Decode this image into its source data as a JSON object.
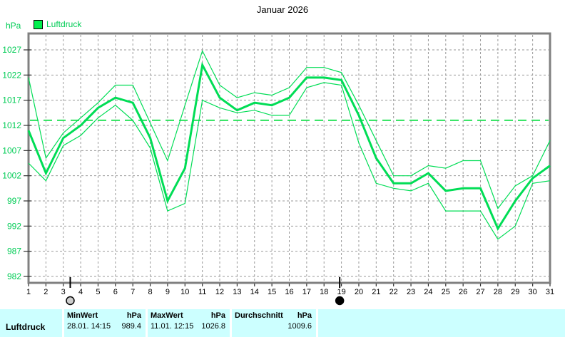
{
  "chart": {
    "title": "Januar 2026",
    "y_unit_label": "hPa",
    "legend_label": "Luftdruck"
  },
  "colors": {
    "series_green": "#00dd55",
    "reference_green": "#2ce35c",
    "green_text": "#00cc55",
    "grid_gray": "#9a9a9a",
    "border_gray": "#808080",
    "tick_dark": "#303030",
    "table_bg": "#ccffff",
    "full_moon_fill": "#cdcdcd",
    "new_moon_fill": "#000000"
  },
  "chart_data": {
    "type": "line",
    "title": "Januar 2026",
    "xlabel": "",
    "ylabel": "hPa",
    "ylim": [
      981,
      1030
    ],
    "grid": true,
    "legend_position": "top-left",
    "x_ticks": [
      1,
      2,
      3,
      4,
      5,
      6,
      7,
      8,
      9,
      10,
      11,
      12,
      13,
      14,
      15,
      16,
      17,
      18,
      19,
      20,
      21,
      22,
      23,
      24,
      25,
      26,
      27,
      28,
      29,
      30,
      31
    ],
    "y_ticks": [
      1027,
      1022,
      1017,
      1012,
      1007,
      1002,
      997,
      992,
      987,
      982
    ],
    "series": [
      {
        "name": "Luftdruck",
        "role": "daily-upper",
        "stroke_width": "thin",
        "values": [
          1021.5,
          1005.5,
          1010.5,
          1013.5,
          1016.5,
          1020,
          1020,
          1012.5,
          1005,
          1016,
          1026.8,
          1020,
          1017.5,
          1018.5,
          1018,
          1019.5,
          1023.5,
          1023.5,
          1022.5,
          1016,
          1009,
          1002,
          1002,
          1004,
          1003.5,
          1005,
          1005,
          995.5,
          1000,
          1002,
          1009
        ]
      },
      {
        "name": "Luftdruck",
        "role": "daily-mean",
        "stroke_width": "thick",
        "values": [
          1011,
          1002.5,
          1009.5,
          1012,
          1015.5,
          1017.5,
          1016.5,
          1009.5,
          997,
          1003.5,
          1024,
          1017.5,
          1015,
          1016.5,
          1016,
          1017.5,
          1021.5,
          1021.5,
          1021,
          1014,
          1005.5,
          1000.5,
          1000.5,
          1002.5,
          999,
          999.5,
          999.5,
          991.5,
          997,
          1001.5,
          1004
        ]
      },
      {
        "name": "Luftdruck",
        "role": "daily-lower",
        "stroke_width": "thin",
        "values": [
          1004.5,
          1001,
          1008,
          1010,
          1013.5,
          1016,
          1013,
          1007.5,
          995,
          996.5,
          1017,
          1015.5,
          1014.5,
          1015,
          1014,
          1014,
          1019.5,
          1020.5,
          1020,
          1008.5,
          1000.5,
          999.5,
          999,
          1000.5,
          995,
          995,
          995,
          989.4,
          992,
          1000.5,
          1001
        ]
      }
    ],
    "reference_line": {
      "value": 1013,
      "style": "long-dash"
    },
    "moon_markers": [
      {
        "day": 3.4,
        "phase": "full-moon"
      },
      {
        "day": 18.9,
        "phase": "new-moon"
      }
    ]
  },
  "footer": {
    "row_label": "Luftdruck",
    "min": {
      "header_label": "MinWert",
      "header_unit": "hPa",
      "datetime": "28.01. 14:15",
      "value": "989.4"
    },
    "max": {
      "header_label": "MaxWert",
      "header_unit": "hPa",
      "datetime": "11.01. 12:15",
      "value": "1026.8"
    },
    "avg": {
      "header_label": "Durchschnitt",
      "header_unit": "hPa",
      "value": "1009.6"
    }
  }
}
